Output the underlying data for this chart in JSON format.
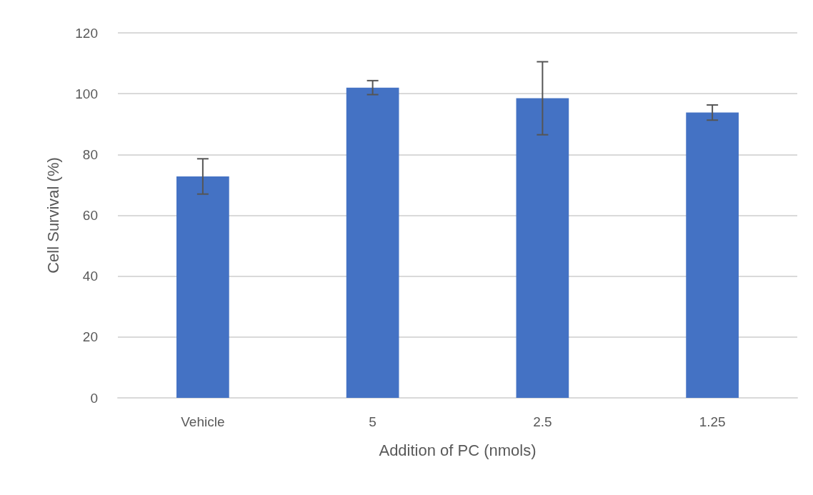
{
  "chart_data": {
    "type": "bar",
    "xlabel": "Addition of PC (nmols)",
    "ylabel": "Cell Survival (%)",
    "categories": [
      "Vehicle",
      "5",
      "2.5",
      "1.25"
    ],
    "values": [
      72.8,
      102,
      98.5,
      93.8
    ],
    "errors": [
      5.8,
      2.3,
      12,
      2.5
    ],
    "color": "#4472c4",
    "ylim": [
      0,
      120
    ],
    "yticks": [
      0,
      20,
      40,
      60,
      80,
      100,
      120
    ],
    "grid": "y"
  }
}
